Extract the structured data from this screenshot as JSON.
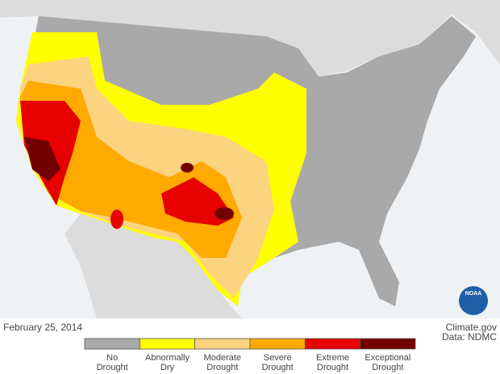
{
  "date": "February 25, 2014",
  "credit": {
    "source": "Climate.gov",
    "data": "Data: NDMC"
  },
  "logo": "NOAA",
  "legend": [
    {
      "lines": [
        "No",
        "Drought"
      ],
      "color": "#a9a9a9"
    },
    {
      "lines": [
        "Abnormally",
        "Dry"
      ],
      "color": "#ffff00"
    },
    {
      "lines": [
        "Moderate",
        "Drought"
      ],
      "color": "#fcd37f"
    },
    {
      "lines": [
        "Severe",
        "Drought"
      ],
      "color": "#ffaa00"
    },
    {
      "lines": [
        "Extreme",
        "Drought"
      ],
      "color": "#e60000"
    },
    {
      "lines": [
        "Exceptional",
        "Drought"
      ],
      "color": "#730000"
    }
  ]
}
